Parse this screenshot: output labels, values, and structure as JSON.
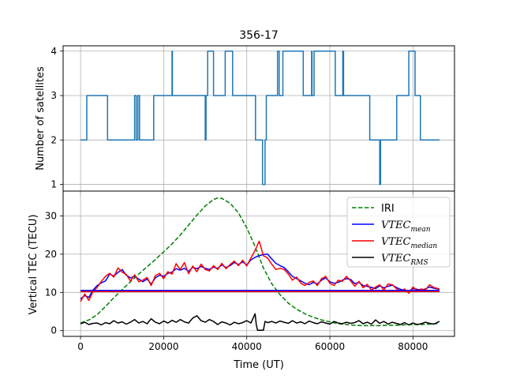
{
  "chart_data": [
    {
      "type": "line",
      "title": "356-17",
      "xlabel": "",
      "ylabel": "Number of satellites",
      "xlim": [
        -4200,
        90000
      ],
      "ylim": [
        0.85,
        4.12
      ],
      "yticks": [
        1,
        2,
        3,
        4
      ],
      "grid": true,
      "color": "#1f77b4",
      "series": [
        {
          "values_mode": "step",
          "x": [
            0,
            1500,
            1500,
            6500,
            6500,
            13000,
            13000,
            13400,
            13400,
            13800,
            13800,
            14200,
            14200,
            17600,
            17600,
            22000,
            22000,
            22100,
            22100,
            30000,
            30000,
            30200,
            30200,
            30600,
            30600,
            32000,
            32000,
            34800,
            34800,
            36600,
            36600,
            42100,
            42100,
            43800,
            43800,
            44400,
            44400,
            44700,
            44700,
            47400,
            47400,
            47800,
            47800,
            48700,
            48700,
            53600,
            53600,
            55600,
            55600,
            55700,
            55700,
            56200,
            56200,
            61300,
            61300,
            63100,
            63100,
            63300,
            63300,
            69600,
            69600,
            72000,
            72000,
            72200,
            72200,
            76100,
            76100,
            79000,
            79000,
            80500,
            80500,
            81800,
            81800,
            86400
          ],
          "y": [
            2,
            2,
            3,
            3,
            2,
            2,
            3,
            3,
            2,
            2,
            3,
            3,
            2,
            2,
            3,
            3,
            4,
            4,
            3,
            3,
            2,
            2,
            3,
            3,
            4,
            4,
            3,
            3,
            4,
            4,
            3,
            3,
            2,
            2,
            1,
            1,
            2,
            2,
            3,
            3,
            4,
            4,
            3,
            3,
            4,
            4,
            3,
            3,
            4,
            4,
            3,
            3,
            4,
            4,
            3,
            3,
            4,
            4,
            3,
            3,
            2,
            2,
            1,
            1,
            2,
            2,
            3,
            3,
            4,
            4,
            3,
            3,
            2,
            2
          ]
        }
      ]
    },
    {
      "type": "line",
      "title": "",
      "xlabel": "Time (UT)",
      "ylabel": "Vertical TEC (TECU)",
      "xlim": [
        -4200,
        90000
      ],
      "ylim": [
        -1.5,
        36.5
      ],
      "xticks": [
        0,
        20000,
        40000,
        60000,
        80000
      ],
      "xtick_labels": [
        "0",
        "20000",
        "40000",
        "60000",
        "80000"
      ],
      "yticks": [
        0,
        10,
        20,
        30
      ],
      "grid": true,
      "legend_placement": "top-right",
      "series": [
        {
          "name": "IRI",
          "color": "#008000",
          "style": "dashed",
          "x": [
            0,
            2000,
            4000,
            6000,
            8000,
            10000,
            12000,
            14000,
            16000,
            18000,
            20000,
            22000,
            24000,
            26000,
            28000,
            30000,
            32000,
            33000,
            34000,
            36000,
            38000,
            40000,
            42000,
            44000,
            46000,
            48000,
            50000,
            52000,
            54000,
            56000,
            58000,
            60000,
            62000,
            64000,
            66000,
            68000,
            70000,
            72000,
            74000,
            76000,
            78000,
            80000,
            82000,
            84000,
            86400
          ],
          "y": [
            2.0,
            2.8,
            4.2,
            6.3,
            8.6,
            10.7,
            12.8,
            14.8,
            16.7,
            18.6,
            20.6,
            22.7,
            25.0,
            27.6,
            30.2,
            32.6,
            34.3,
            34.7,
            34.6,
            33.3,
            30.8,
            26.9,
            22.0,
            16.4,
            12.3,
            9.4,
            7.2,
            5.6,
            4.4,
            3.5,
            2.8,
            2.3,
            1.8,
            1.6,
            1.4,
            1.3,
            1.3,
            1.3,
            1.4,
            1.4,
            1.5,
            1.6,
            1.6,
            1.7,
            1.9
          ]
        },
        {
          "name": "VTEC_mean",
          "label_base": "VTEC",
          "label_sub": "mean",
          "color": "#0000ff",
          "style": "solid",
          "x": [
            0,
            1000,
            2000,
            3000,
            4000,
            5000,
            6000,
            7000,
            8000,
            9000,
            10000,
            11000,
            12000,
            13000,
            14000,
            15000,
            16000,
            17000,
            18000,
            19000,
            20000,
            21000,
            22000,
            23000,
            24000,
            25000,
            26000,
            27000,
            28000,
            29000,
            30000,
            31000,
            32000,
            33000,
            34000,
            35000,
            36000,
            37000,
            38000,
            39000,
            40000,
            41000,
            42000,
            43000,
            44000,
            45000,
            46000,
            47000,
            48000,
            49000,
            50000,
            51000,
            52000,
            53000,
            54000,
            55000,
            56000,
            57000,
            58000,
            59000,
            60000,
            61000,
            62000,
            63000,
            64000,
            65000,
            66000,
            67000,
            68000,
            69000,
            70000,
            71000,
            72000,
            73000,
            74000,
            75000,
            76000,
            77000,
            78000,
            79000,
            80000,
            81000,
            82000,
            83000,
            84000,
            85000,
            86400
          ],
          "y": [
            8.3,
            9.2,
            8.7,
            10.6,
            11.8,
            12.5,
            13.0,
            14.8,
            14.3,
            15.2,
            16.0,
            14.5,
            13.8,
            14.2,
            13.5,
            12.8,
            13.5,
            12.2,
            13.8,
            14.5,
            14.2,
            15.0,
            15.3,
            16.2,
            15.8,
            16.3,
            15.5,
            16.6,
            16.2,
            16.8,
            16.3,
            16.0,
            16.6,
            16.3,
            17.2,
            16.5,
            17.0,
            17.8,
            17.3,
            18.0,
            17.2,
            18.5,
            19.2,
            19.6,
            19.9,
            20.0,
            18.8,
            17.6,
            17.0,
            16.5,
            15.4,
            14.2,
            13.6,
            13.0,
            12.4,
            12.0,
            12.6,
            12.2,
            13.2,
            13.8,
            12.8,
            12.4,
            12.6,
            13.2,
            13.6,
            13.4,
            12.3,
            12.6,
            11.8,
            11.6,
            11.3,
            11.0,
            11.7,
            11.2,
            11.6,
            11.9,
            11.3,
            10.8,
            10.5,
            10.2,
            11.0,
            10.8,
            10.6,
            10.9,
            11.4,
            11.1,
            10.8
          ]
        },
        {
          "name": "VTEC_median",
          "label_base": "VTEC",
          "label_sub": "median",
          "color": "#ff0000",
          "style": "solid",
          "x": [
            0,
            1000,
            2000,
            3000,
            4000,
            5000,
            6000,
            7000,
            8000,
            9000,
            10000,
            11000,
            12000,
            13000,
            14000,
            15000,
            16000,
            17000,
            18000,
            19000,
            20000,
            21000,
            22000,
            23000,
            24000,
            25000,
            26000,
            27000,
            28000,
            29000,
            30000,
            31000,
            32000,
            33000,
            34000,
            35000,
            36000,
            37000,
            38000,
            39000,
            40000,
            41000,
            42000,
            43000,
            44000,
            45000,
            46000,
            47000,
            48000,
            49000,
            50000,
            51000,
            52000,
            53000,
            54000,
            55000,
            56000,
            57000,
            58000,
            59000,
            60000,
            61000,
            62000,
            63000,
            64000,
            65000,
            66000,
            67000,
            68000,
            69000,
            70000,
            71000,
            72000,
            73000,
            74000,
            75000,
            76000,
            77000,
            78000,
            79000,
            80000,
            81000,
            82000,
            83000,
            84000,
            85000,
            86400
          ],
          "y": [
            7.6,
            9.6,
            7.9,
            10.2,
            11.3,
            12.9,
            14.2,
            15.0,
            14.0,
            16.4,
            15.3,
            14.7,
            13.0,
            14.6,
            12.8,
            13.2,
            13.9,
            11.8,
            14.4,
            15.0,
            13.6,
            15.4,
            14.8,
            17.5,
            16.0,
            17.8,
            14.9,
            16.9,
            15.4,
            17.4,
            16.0,
            15.6,
            17.0,
            16.0,
            17.6,
            16.2,
            17.3,
            18.2,
            17.0,
            18.4,
            16.9,
            19.0,
            21.0,
            23.4,
            19.6,
            19.0,
            17.4,
            16.0,
            16.3,
            16.0,
            14.8,
            13.2,
            14.0,
            12.4,
            11.8,
            12.6,
            13.0,
            11.8,
            13.6,
            14.2,
            12.4,
            11.8,
            13.2,
            12.9,
            14.2,
            13.0,
            11.6,
            12.9,
            11.2,
            12.1,
            10.6,
            11.4,
            12.0,
            10.6,
            12.2,
            12.0,
            11.0,
            10.3,
            10.9,
            9.8,
            11.4,
            10.5,
            10.9,
            10.6,
            12.0,
            11.3,
            10.9
          ]
        },
        {
          "name": "VTEC_median_const",
          "color": "#ff0000",
          "style": "solid",
          "x": [
            0,
            86400
          ],
          "y": [
            10.2,
            10.2
          ]
        },
        {
          "name": "VTEC_mean_const",
          "color": "#0000ff",
          "style": "solid",
          "x": [
            0,
            86400
          ],
          "y": [
            10.5,
            10.5
          ]
        },
        {
          "name": "VTEC_RMS",
          "label_base": "VTEC",
          "label_sub": "RMS",
          "color": "#000000",
          "style": "solid",
          "x": [
            0,
            1000,
            2000,
            3000,
            4000,
            5000,
            6000,
            7000,
            8000,
            9000,
            10000,
            11000,
            12000,
            13000,
            14000,
            15000,
            16000,
            17000,
            18000,
            19000,
            20000,
            21000,
            22000,
            23000,
            24000,
            25000,
            26000,
            27000,
            28000,
            29000,
            30000,
            31000,
            32000,
            33000,
            34000,
            35000,
            36000,
            37000,
            38000,
            39000,
            40000,
            41000,
            42000,
            42300,
            42600,
            44000,
            44400,
            45000,
            46000,
            47000,
            48000,
            49000,
            50000,
            51000,
            52000,
            53000,
            54000,
            55000,
            56000,
            57000,
            58000,
            59000,
            60000,
            61000,
            62000,
            63000,
            64000,
            65000,
            66000,
            67000,
            68000,
            69000,
            70000,
            71000,
            72000,
            73000,
            74000,
            75000,
            76000,
            77000,
            78000,
            79000,
            80000,
            81000,
            82000,
            83000,
            84000,
            85000,
            86400
          ],
          "y": [
            1.8,
            2.2,
            1.6,
            1.9,
            2.0,
            1.5,
            2.1,
            1.8,
            2.6,
            2.0,
            2.3,
            1.7,
            2.2,
            2.9,
            2.0,
            2.4,
            1.8,
            3.1,
            2.2,
            1.8,
            2.5,
            2.0,
            2.7,
            2.2,
            2.9,
            2.3,
            2.0,
            3.3,
            3.9,
            2.6,
            2.2,
            2.9,
            2.4,
            1.6,
            2.3,
            2.0,
            1.5,
            2.2,
            1.8,
            2.1,
            2.6,
            2.0,
            4.4,
            1.6,
            0.1,
            0.1,
            2.4,
            2.1,
            2.4,
            2.0,
            2.5,
            2.2,
            1.9,
            2.6,
            2.0,
            2.3,
            1.8,
            2.5,
            2.1,
            1.8,
            2.3,
            2.0,
            1.7,
            2.4,
            2.0,
            1.8,
            2.2,
            1.9,
            2.1,
            2.6,
            1.8,
            2.2,
            1.7,
            2.8,
            1.9,
            2.4,
            1.7,
            2.2,
            1.9,
            1.6,
            2.1,
            1.5,
            2.0,
            1.6,
            1.8,
            2.2,
            1.9,
            1.7,
            2.4
          ]
        }
      ],
      "legend": [
        "IRI",
        "VTEC_mean",
        "VTEC_median",
        "VTEC_RMS"
      ]
    }
  ]
}
